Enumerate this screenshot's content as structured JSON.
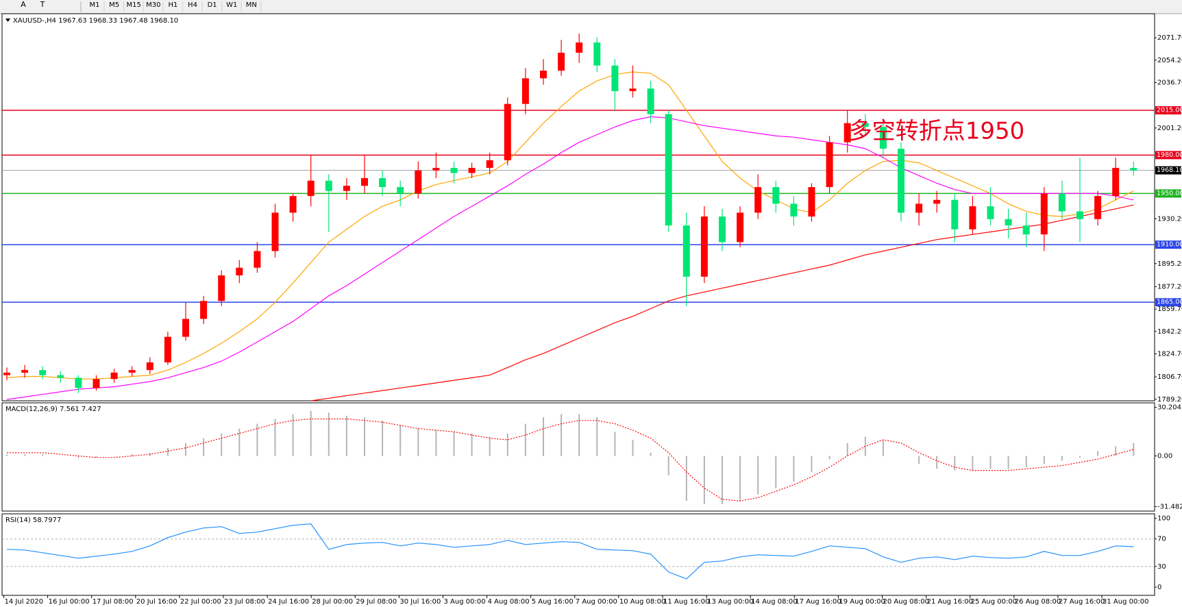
{
  "toolbar": {
    "tools": [
      "A",
      "T"
    ],
    "timeframes": [
      "M1",
      "M5",
      "M15",
      "M30",
      "H1",
      "H4",
      "D1",
      "W1",
      "MN"
    ]
  },
  "time_axis": {
    "labels": [
      "14 Jul 2020",
      "16 Jul 00:00",
      "17 Jul 08:00",
      "20 Jul 16:00",
      "22 Jul 00:00",
      "23 Jul 08:00",
      "24 Jul 16:00",
      "28 Jul 00:00",
      "29 Jul 08:00",
      "30 Jul 16:00",
      "3 Aug 00:00",
      "4 Aug 08:00",
      "5 Aug 16:00",
      "7 Aug 00:00",
      "10 Aug 08:00",
      "11 Aug 16:00",
      "13 Aug 00:00",
      "14 Aug 08:00",
      "17 Aug 16:00",
      "19 Aug 00:00",
      "20 Aug 08:00",
      "21 Aug 16:00",
      "25 Aug 00:00",
      "26 Aug 08:00",
      "27 Aug 16:00",
      "31 Aug 00:00"
    ]
  },
  "chart_data": [
    {
      "type": "candlestick",
      "title": "XAUUSD-,H4  1967.63 1968.33 1967.48 1968.10",
      "annotation": "多空转折点1950",
      "annotation_color": "#e8001c",
      "up_color": "#ff0000",
      "down_color": "#00e676",
      "open": [
        1808,
        1810,
        1812,
        1808,
        1806,
        1798,
        1805,
        1810,
        1812,
        1818,
        1838,
        1852,
        1866,
        1886,
        1892,
        1905,
        1935,
        1948,
        1960,
        1952,
        1956,
        1962,
        1955,
        1950,
        1968,
        1970,
        1966,
        1970,
        1976,
        2020,
        2040,
        2046,
        2060,
        2068,
        2050,
        2030,
        2032,
        2012,
        1925,
        1885,
        1932,
        1912,
        1935,
        1955,
        1942,
        1932,
        1955,
        1990,
        2005,
        2002,
        1985,
        1935,
        1942,
        1945,
        1922,
        1940,
        1930,
        1925,
        1918,
        1950,
        1936,
        1930,
        1948,
        1970
      ],
      "high": [
        1814,
        1816,
        1815,
        1811,
        1808,
        1808,
        1813,
        1815,
        1822,
        1842,
        1865,
        1870,
        1890,
        1898,
        1912,
        1942,
        1950,
        1980,
        1965,
        1962,
        1980,
        1968,
        1960,
        1975,
        1982,
        1975,
        1974,
        1982,
        2025,
        2048,
        2055,
        2070,
        2075,
        2072,
        2055,
        2050,
        2038,
        2015,
        1935,
        1940,
        1938,
        1940,
        1965,
        1960,
        1948,
        1958,
        1995,
        2015,
        2012,
        2008,
        1990,
        1950,
        1952,
        1950,
        1948,
        1955,
        1938,
        1935,
        1955,
        1960,
        1978,
        1952,
        1978,
        1975
      ],
      "low": [
        1804,
        1806,
        1805,
        1802,
        1794,
        1796,
        1802,
        1807,
        1809,
        1816,
        1835,
        1848,
        1862,
        1880,
        1888,
        1900,
        1928,
        1940,
        1920,
        1945,
        1950,
        1948,
        1940,
        1946,
        1962,
        1958,
        1962,
        1965,
        1972,
        2012,
        2035,
        2042,
        2052,
        2045,
        2015,
        2025,
        2005,
        1920,
        1862,
        1880,
        1905,
        1908,
        1930,
        1935,
        1925,
        1928,
        1950,
        1982,
        1995,
        1978,
        1928,
        1925,
        1935,
        1912,
        1918,
        1925,
        1915,
        1908,
        1905,
        1930,
        1912,
        1925,
        1945,
        1964
      ],
      "close": [
        1810,
        1812,
        1808,
        1806,
        1798,
        1805,
        1810,
        1812,
        1818,
        1838,
        1852,
        1866,
        1886,
        1892,
        1905,
        1935,
        1948,
        1960,
        1952,
        1956,
        1962,
        1955,
        1950,
        1968,
        1970,
        1966,
        1970,
        1976,
        2020,
        2040,
        2046,
        2060,
        2068,
        2050,
        2030,
        2032,
        2012,
        1925,
        1885,
        1932,
        1912,
        1935,
        1955,
        1942,
        1932,
        1955,
        1990,
        2005,
        2002,
        1985,
        1935,
        1942,
        1945,
        1922,
        1940,
        1930,
        1925,
        1918,
        1950,
        1936,
        1930,
        1948,
        1970,
        1968.1
      ],
      "series": [
        {
          "color": "#ffa500",
          "values": [
            1806,
            1807,
            1807,
            1806,
            1805,
            1805,
            1806,
            1807,
            1808,
            1812,
            1818,
            1825,
            1833,
            1842,
            1852,
            1865,
            1880,
            1896,
            1912,
            1922,
            1932,
            1940,
            1945,
            1952,
            1957,
            1960,
            1963,
            1966,
            1975,
            1990,
            2005,
            2018,
            2030,
            2038,
            2043,
            2045,
            2044,
            2035,
            2015,
            1995,
            1975,
            1962,
            1952,
            1945,
            1938,
            1935,
            1945,
            1958,
            1968,
            1975,
            1976,
            1974,
            1968,
            1962,
            1956,
            1950,
            1942,
            1936,
            1933,
            1932,
            1934,
            1938,
            1945,
            1952
          ]
        },
        {
          "color": "#ff00ff",
          "values": [
            1789,
            1791,
            1793,
            1795,
            1797,
            1798,
            1799,
            1801,
            1803,
            1806,
            1810,
            1814,
            1819,
            1826,
            1834,
            1842,
            1850,
            1860,
            1870,
            1878,
            1887,
            1896,
            1905,
            1914,
            1923,
            1932,
            1940,
            1948,
            1956,
            1965,
            1973,
            1982,
            1990,
            1996,
            2002,
            2007,
            2010,
            2009,
            2006,
            2003,
            2001,
            1999,
            1997,
            1995,
            1994,
            1992,
            1990,
            1988,
            1985,
            1978,
            1970,
            1964,
            1958,
            1953,
            1950,
            1950,
            1950,
            1950,
            1950,
            1950,
            1950,
            1950,
            1948,
            1945
          ]
        },
        {
          "color": "#ff0000",
          "values": [
            null,
            null,
            null,
            null,
            null,
            null,
            null,
            null,
            null,
            null,
            null,
            null,
            null,
            null,
            null,
            null,
            null,
            1788,
            1790,
            1792,
            1794,
            1796,
            1798,
            1800,
            1802,
            1804,
            1806,
            1808,
            1814,
            1820,
            1825,
            1831,
            1837,
            1843,
            1849,
            1854,
            1860,
            1866,
            1870,
            1873,
            1876,
            1879,
            1882,
            1885,
            1888,
            1891,
            1894,
            1898,
            1902,
            1905,
            1908,
            1911,
            1914,
            1916,
            1918,
            1920,
            1922,
            1924,
            1926,
            1929,
            1932,
            1935,
            1938,
            1941
          ]
        }
      ],
      "levels": [
        {
          "value": 2015,
          "label": "2015.00",
          "color": "#e8001c"
        },
        {
          "value": 1980,
          "label": "1980.00",
          "color": "#e8001c"
        },
        {
          "value": 1968.1,
          "label": "1968.10",
          "color": "#000000"
        },
        {
          "value": 1950,
          "label": "1950.00",
          "color": "#1db31d"
        },
        {
          "value": 1910,
          "label": "1910.00",
          "color": "#2a45e8"
        },
        {
          "value": 1865,
          "label": "1865.00",
          "color": "#2a45e8"
        }
      ],
      "ylim": [
        1788,
        2090.5
      ],
      "yticks": [
        {
          "value": 2071.7,
          "label": "2071.70"
        },
        {
          "value": 2054.2,
          "label": "2054.20"
        },
        {
          "value": 2036.7,
          "label": "2036.70"
        },
        {
          "value": 2001.2,
          "label": "2001.20"
        },
        {
          "value": 1930.2,
          "label": "1930.20"
        },
        {
          "value": 1895.2,
          "label": "1895.20"
        },
        {
          "value": 1877.2,
          "label": "1877.20"
        },
        {
          "value": 1859.7,
          "label": "1859.70"
        },
        {
          "value": 1842.2,
          "label": "1842.20"
        },
        {
          "value": 1824.7,
          "label": "1824.70"
        },
        {
          "value": 1806.7,
          "label": "1806.70"
        },
        {
          "value": 1789.2,
          "label": "1789.20"
        }
      ]
    },
    {
      "type": "macd",
      "title": "MACD(12,26,9) 7.561 7.427",
      "series": [
        {
          "kind": "histogram",
          "color": "#b4b4b4",
          "values": [
            1,
            1,
            1,
            0,
            -1,
            -1,
            0,
            1,
            2,
            5,
            8,
            11,
            14,
            17,
            20,
            23,
            26,
            28,
            27,
            25,
            24,
            22,
            19,
            17,
            16,
            15,
            14,
            12,
            14,
            20,
            24,
            26,
            26,
            24,
            15,
            10,
            2,
            -12,
            -28,
            -30,
            -30,
            -28,
            -24,
            -20,
            -16,
            -10,
            -2,
            8,
            12,
            10,
            0,
            -5,
            -8,
            -9,
            -9,
            -8,
            -8,
            -7,
            -5,
            -3,
            -1,
            3,
            6,
            8
          ]
        },
        {
          "kind": "line",
          "color": "#ff0000",
          "values": [
            2,
            2,
            2,
            1,
            0,
            -1,
            -1,
            0,
            1,
            3,
            5,
            8,
            11,
            14,
            17,
            20,
            22,
            23,
            23,
            23,
            22,
            21,
            19,
            17,
            16,
            15,
            13,
            11,
            10,
            13,
            17,
            20,
            22,
            22,
            20,
            16,
            11,
            2,
            -10,
            -20,
            -27,
            -28,
            -26,
            -22,
            -18,
            -13,
            -7,
            0,
            6,
            10,
            8,
            2,
            -3,
            -7,
            -9,
            -9,
            -9,
            -8,
            -7,
            -6,
            -4,
            -2,
            1,
            4
          ]
        }
      ],
      "ylim": [
        -34.3,
        33
      ],
      "yticks": [
        30.204,
        {
          "value": 0,
          "label": "0.00"
        },
        -31.482
      ]
    },
    {
      "type": "line",
      "title": "RSI(14) 58.7977",
      "color": "#1e90ff",
      "values": [
        55,
        54,
        50,
        46,
        42,
        45,
        48,
        52,
        60,
        72,
        80,
        86,
        88,
        78,
        80,
        85,
        90,
        92,
        55,
        62,
        64,
        65,
        60,
        64,
        62,
        58,
        60,
        62,
        68,
        62,
        64,
        66,
        65,
        55,
        54,
        53,
        48,
        22,
        12,
        36,
        38,
        44,
        47,
        46,
        45,
        52,
        60,
        58,
        56,
        44,
        36,
        42,
        44,
        40,
        45,
        43,
        42,
        44,
        52,
        46,
        46,
        52,
        60,
        58.7977
      ],
      "ylim": [
        -12,
        106.6
      ],
      "yticks": [
        100,
        70,
        30,
        0
      ],
      "grid": "dashed"
    }
  ]
}
